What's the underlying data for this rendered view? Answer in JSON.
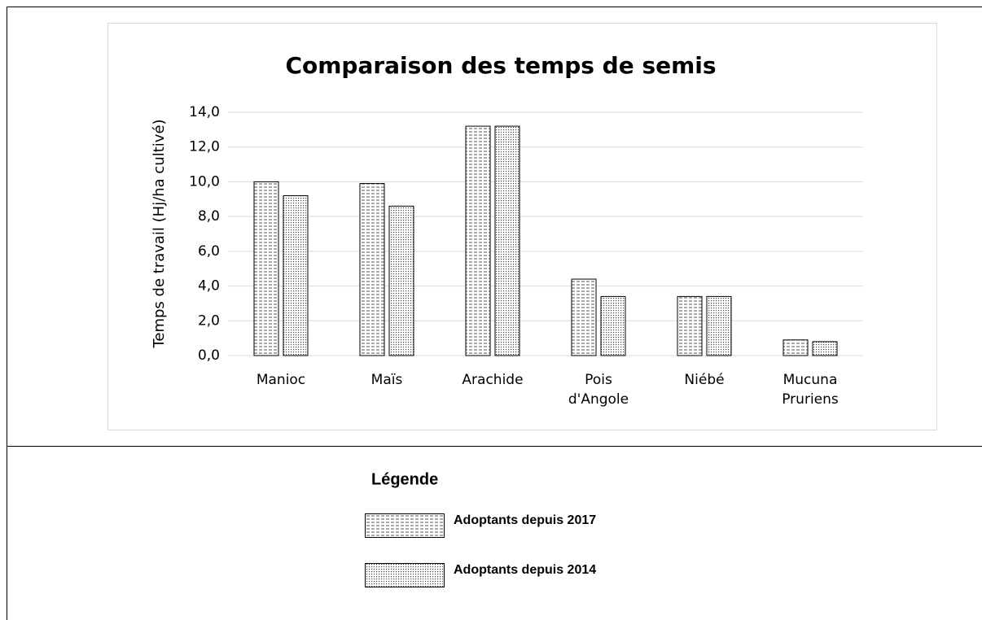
{
  "chart_data": {
    "type": "bar",
    "title": "Comparaison des temps de semis",
    "y_label": "Temps de travail (Hj/ha cultivé)",
    "categories": [
      "Manioc",
      "Maïs",
      "Arachide",
      "Pois d'Angole",
      "Niébé",
      "Mucuna Pruriens"
    ],
    "series": [
      {
        "name": "Adoptants depuis 2017",
        "color": "#000000",
        "pattern": "grid",
        "values": [
          10.0,
          9.9,
          13.2,
          4.4,
          3.4,
          0.9
        ]
      },
      {
        "name": "Adoptants depuis 2014",
        "color": "#000000",
        "pattern": "dots",
        "values": [
          9.2,
          8.6,
          13.2,
          3.4,
          3.4,
          0.8
        ]
      }
    ],
    "ylim": [
      0,
      14
    ],
    "yticks": [
      {
        "value": 0,
        "label": "0,0"
      },
      {
        "value": 2,
        "label": "2,0"
      },
      {
        "value": 4,
        "label": "4,0"
      },
      {
        "value": 6,
        "label": "6,0"
      },
      {
        "value": 8,
        "label": "8,0"
      },
      {
        "value": 10,
        "label": "10,0"
      },
      {
        "value": 12,
        "label": "12,0"
      },
      {
        "value": 14,
        "label": "14,0"
      }
    ],
    "grid": true,
    "legend_title": "Légende"
  }
}
